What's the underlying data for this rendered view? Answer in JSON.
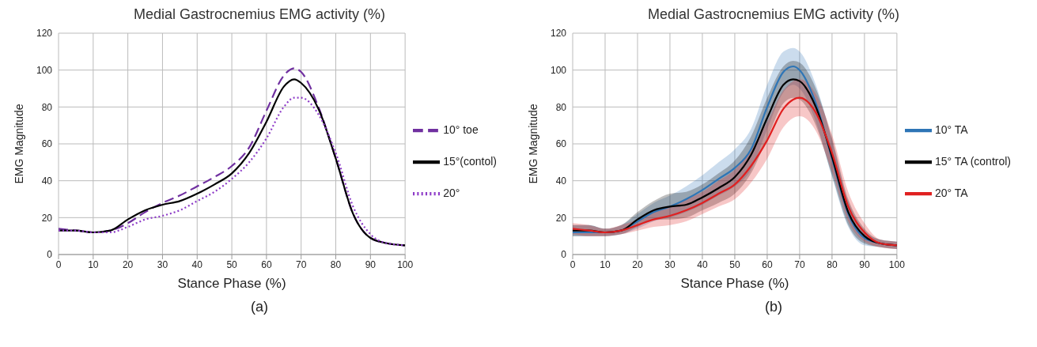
{
  "chart_data": [
    {
      "type": "line",
      "title": "Medial Gastrocnemius EMG activity (%)",
      "xlabel": "Stance Phase (%)",
      "ylabel": "EMG Magnitude",
      "annotations": [
        "(a)"
      ],
      "x": [
        0,
        5,
        10,
        15,
        20,
        25,
        30,
        35,
        40,
        45,
        50,
        55,
        60,
        65,
        68,
        70,
        75,
        80,
        85,
        90,
        95,
        100
      ],
      "series": [
        {
          "name": "10° toe",
          "color": "#7030a0",
          "line_style": "dashed",
          "values": [
            14,
            13,
            12,
            13,
            17,
            23,
            28,
            32,
            37,
            42,
            48,
            58,
            78,
            97,
            101,
            99,
            80,
            52,
            22,
            9,
            6,
            5
          ]
        },
        {
          "name": "15°(contol)",
          "color": "#000000",
          "line_style": "solid",
          "values": [
            13,
            13,
            12,
            13,
            19,
            24,
            27,
            29,
            33,
            38,
            44,
            55,
            72,
            91,
            95,
            93,
            79,
            52,
            22,
            9,
            6,
            5
          ]
        },
        {
          "name": "20°",
          "color": "#8e3cc8",
          "line_style": "dotted",
          "values": [
            13,
            13,
            12,
            12,
            15,
            19,
            21,
            24,
            29,
            34,
            41,
            50,
            63,
            80,
            85,
            85,
            76,
            55,
            26,
            11,
            6,
            5
          ]
        }
      ],
      "xlim": [
        0,
        100
      ],
      "xticks": [
        0,
        10,
        20,
        30,
        40,
        50,
        60,
        70,
        80,
        90,
        100
      ],
      "ylim": [
        0,
        120
      ],
      "yticks": [
        0,
        20,
        40,
        60,
        80,
        100,
        120
      ],
      "grid": true,
      "legend": "right"
    },
    {
      "type": "line",
      "title": "Medial Gastrocnemius EMG activity (%)",
      "xlabel": "Stance Phase (%)",
      "ylabel": "EMG Magnitude",
      "annotations": [
        "(b)"
      ],
      "x": [
        0,
        5,
        10,
        15,
        20,
        25,
        30,
        35,
        40,
        45,
        50,
        55,
        60,
        65,
        68,
        70,
        75,
        80,
        85,
        90,
        95,
        100
      ],
      "series": [
        {
          "name": "10° TA",
          "color": "#2e75b6",
          "values": [
            12,
            12,
            12,
            13,
            18,
            23,
            26,
            30,
            35,
            41,
            47,
            57,
            80,
            99,
            102,
            100,
            82,
            52,
            22,
            9,
            6,
            5
          ],
          "lower": [
            10,
            10,
            10,
            11,
            14,
            18,
            20,
            23,
            27,
            32,
            37,
            46,
            68,
            88,
            92,
            90,
            72,
            42,
            15,
            5,
            4,
            3
          ],
          "upper": [
            16,
            16,
            14,
            16,
            22,
            28,
            32,
            37,
            43,
            50,
            57,
            68,
            92,
            110,
            112,
            110,
            92,
            62,
            29,
            13,
            8,
            7
          ]
        },
        {
          "name": "15° TA (control)",
          "color": "#000000",
          "values": [
            13,
            13,
            12,
            13,
            19,
            24,
            26,
            27,
            31,
            36,
            42,
            54,
            74,
            92,
            95,
            94,
            80,
            53,
            23,
            10,
            6,
            5
          ],
          "lower": [
            10,
            10,
            10,
            11,
            15,
            19,
            19,
            20,
            24,
            28,
            33,
            44,
            63,
            82,
            85,
            84,
            70,
            43,
            16,
            6,
            4,
            3
          ],
          "upper": [
            16,
            16,
            14,
            16,
            23,
            29,
            33,
            34,
            38,
            44,
            51,
            64,
            85,
            102,
            105,
            104,
            90,
            63,
            30,
            14,
            8,
            7
          ]
        },
        {
          "name": "20° TA",
          "color": "#e02020",
          "values": [
            14,
            13,
            12,
            13,
            16,
            19,
            21,
            24,
            28,
            33,
            38,
            48,
            62,
            79,
            84,
            85,
            77,
            55,
            26,
            12,
            6,
            5
          ],
          "lower": [
            11,
            10,
            10,
            11,
            13,
            15,
            16,
            18,
            22,
            26,
            30,
            39,
            52,
            69,
            74,
            75,
            67,
            45,
            18,
            7,
            4,
            3
          ],
          "upper": [
            17,
            16,
            14,
            16,
            19,
            23,
            26,
            30,
            34,
            40,
            46,
            57,
            72,
            89,
            94,
            95,
            87,
            65,
            34,
            17,
            8,
            7
          ]
        }
      ],
      "xlim": [
        0,
        100
      ],
      "xticks": [
        0,
        10,
        20,
        30,
        40,
        50,
        60,
        70,
        80,
        90,
        100
      ],
      "ylim": [
        0,
        120
      ],
      "yticks": [
        0,
        20,
        40,
        60,
        80,
        100,
        120
      ],
      "grid": true,
      "legend": "right"
    }
  ]
}
